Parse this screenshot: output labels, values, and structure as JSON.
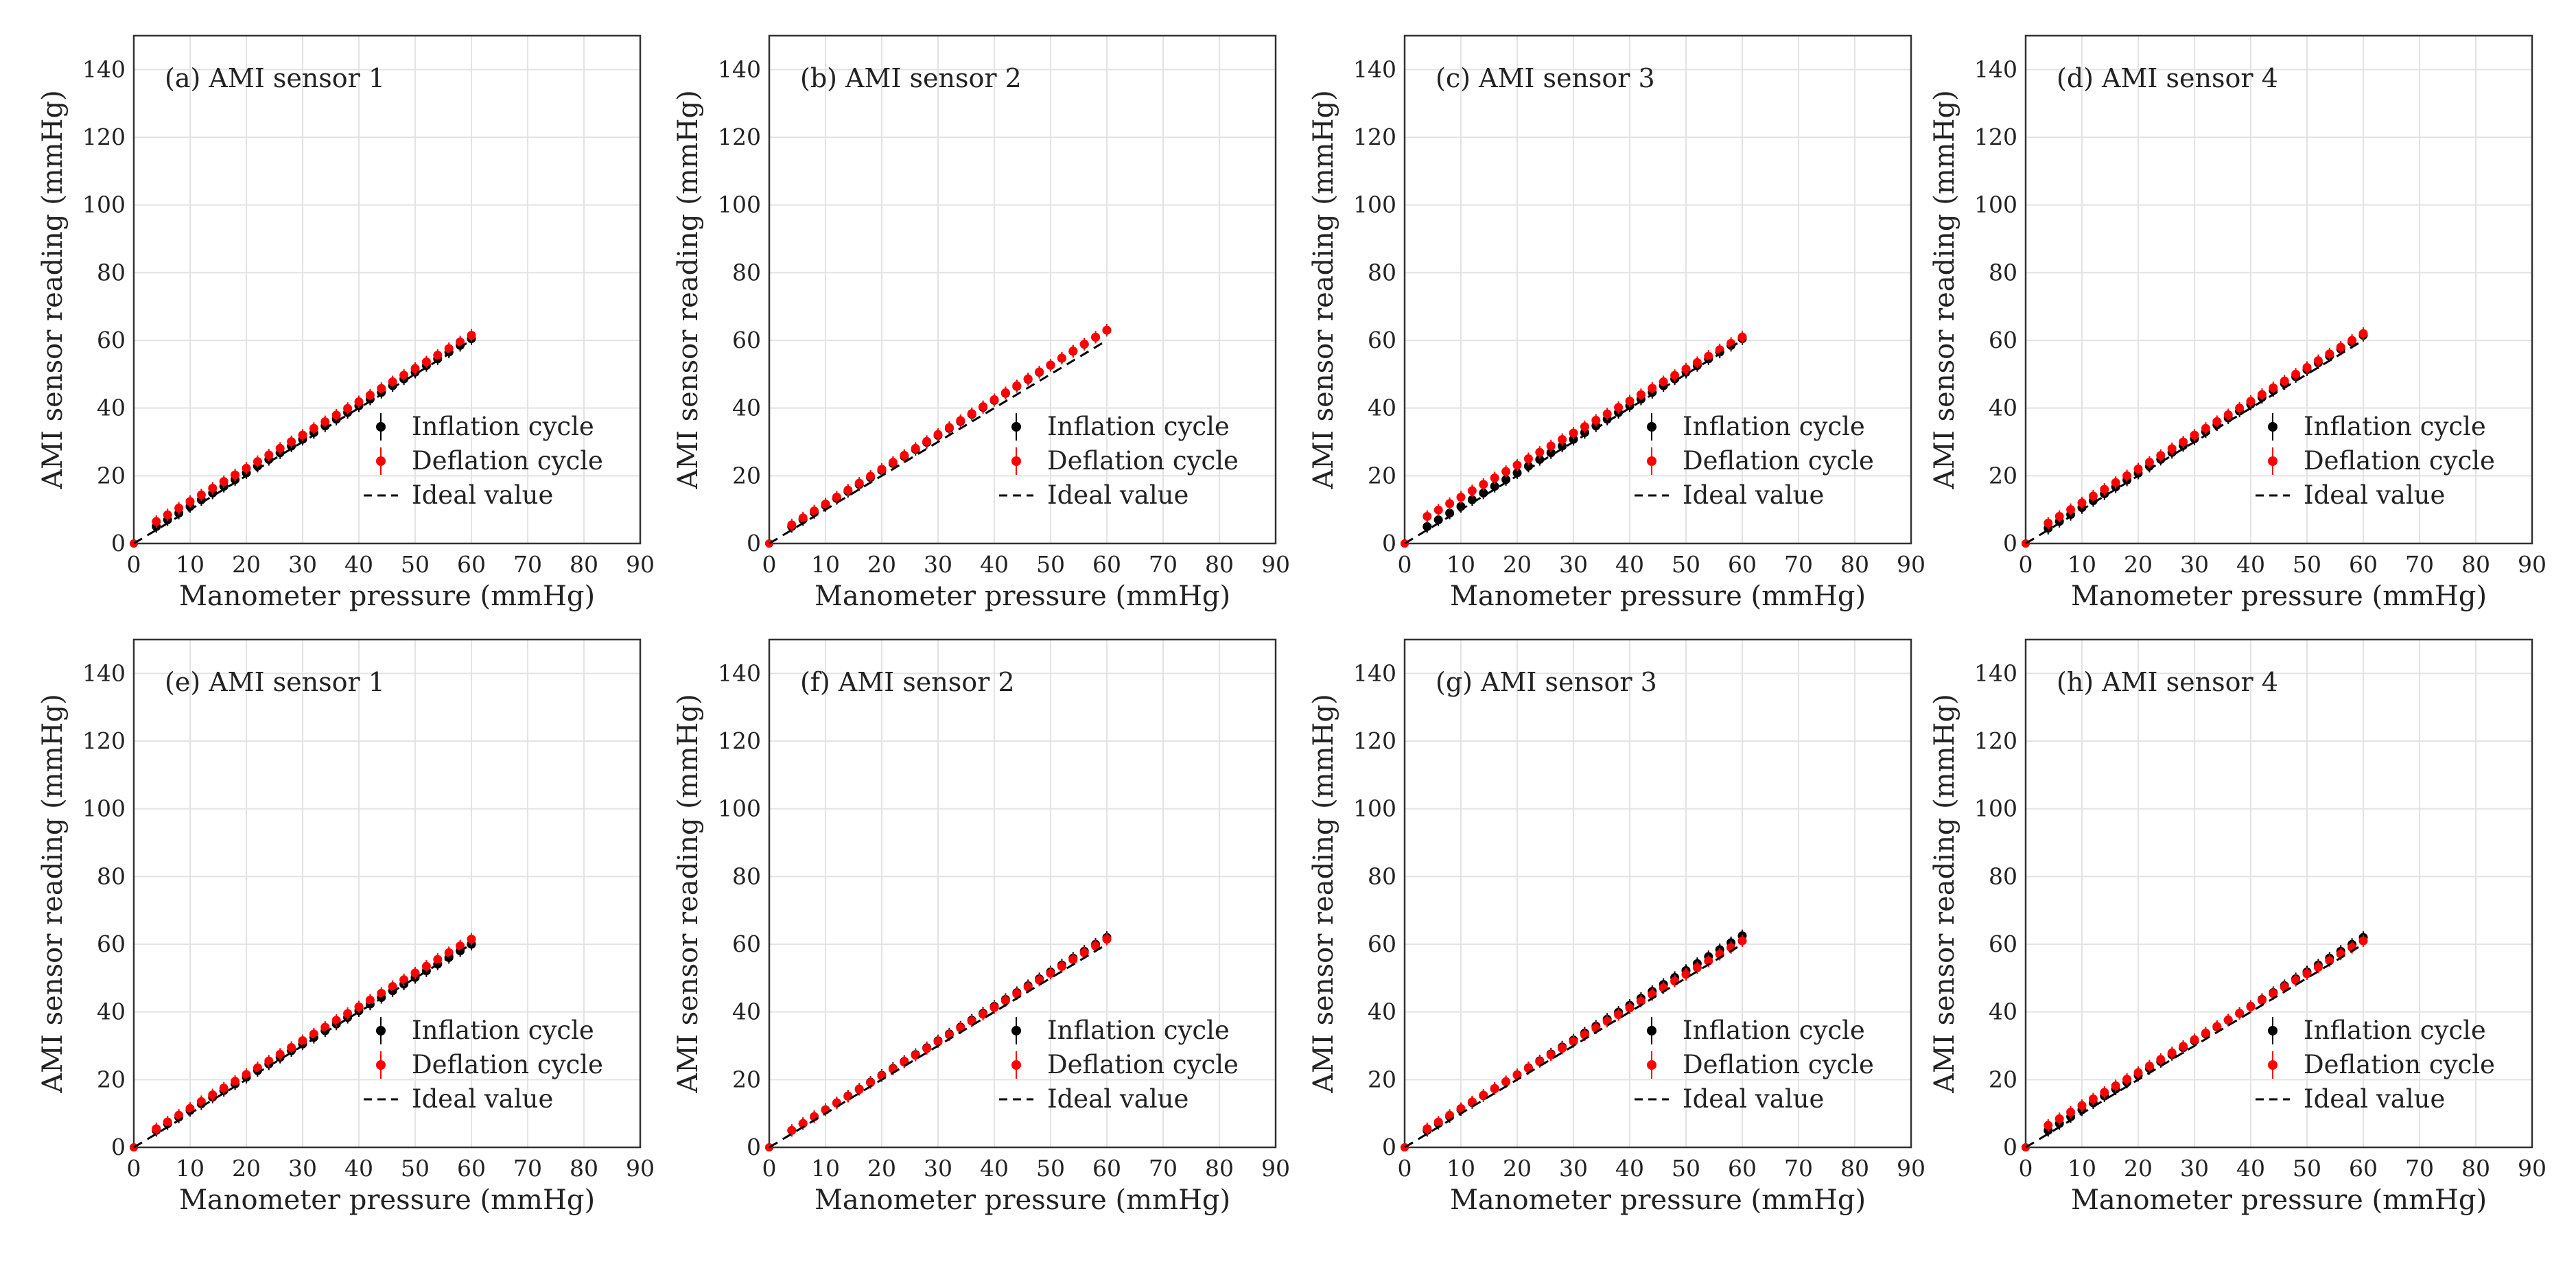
{
  "figure": {
    "background": "#ffffff"
  },
  "chart_data": [
    {
      "type": "scatter",
      "title": "(a) AMI sensor 1",
      "xlabel": "Manometer pressure (mmHg)",
      "ylabel": "AMI sensor reading (mmHg)",
      "xlim": [
        0,
        90
      ],
      "ylim": [
        0,
        150
      ],
      "xticks": [
        "0",
        "10",
        "20",
        "30",
        "40",
        "50",
        "60",
        "70",
        "80",
        "90"
      ],
      "yticks": [
        "0",
        "20",
        "40",
        "60",
        "80",
        "100",
        "120",
        "140"
      ],
      "grid": true,
      "legend": "right-middle",
      "series": [
        {
          "name": "Inflation cycle",
          "color": "#000000",
          "marker": "dot-errorbar",
          "x_range": [
            4,
            60
          ],
          "y_at_start": 5.0,
          "y_at_end": 60.5
        },
        {
          "name": "Deflation cycle",
          "color": "#ff0000",
          "marker": "dot-errorbar",
          "x_range": [
            4,
            60
          ],
          "y_at_start": 6.5,
          "y_at_end": 61.5
        },
        {
          "name": "Ideal value",
          "color": "#000000",
          "style": "dashed",
          "x": [
            0,
            60
          ],
          "y": [
            0,
            60
          ]
        }
      ]
    },
    {
      "type": "scatter",
      "title": "(b) AMI sensor 2",
      "xlabel": "Manometer pressure (mmHg)",
      "ylabel": "AMI sensor reading (mmHg)",
      "xlim": [
        0,
        90
      ],
      "ylim": [
        0,
        150
      ],
      "xticks": [
        "0",
        "10",
        "20",
        "30",
        "40",
        "50",
        "60",
        "70",
        "80",
        "90"
      ],
      "yticks": [
        "0",
        "20",
        "40",
        "60",
        "80",
        "100",
        "120",
        "140"
      ],
      "grid": true,
      "legend": "right-middle",
      "series": [
        {
          "name": "Inflation cycle",
          "color": "#000000",
          "marker": "dot-errorbar",
          "x_range": [
            4,
            60
          ],
          "y_at_start": 5.0,
          "y_at_end": 63.0
        },
        {
          "name": "Deflation cycle",
          "color": "#ff0000",
          "marker": "dot-errorbar",
          "x_range": [
            4,
            60
          ],
          "y_at_start": 5.5,
          "y_at_end": 63.0
        },
        {
          "name": "Ideal value",
          "color": "#000000",
          "style": "dashed",
          "x": [
            0,
            60
          ],
          "y": [
            0,
            60
          ]
        }
      ]
    },
    {
      "type": "scatter",
      "title": "(c) AMI sensor 3",
      "xlabel": "Manometer pressure (mmHg)",
      "ylabel": "AMI sensor reading (mmHg)",
      "xlim": [
        0,
        90
      ],
      "ylim": [
        0,
        150
      ],
      "xticks": [
        "0",
        "10",
        "20",
        "30",
        "40",
        "50",
        "60",
        "70",
        "80",
        "90"
      ],
      "yticks": [
        "0",
        "20",
        "40",
        "60",
        "80",
        "100",
        "120",
        "140"
      ],
      "grid": true,
      "legend": "right-middle",
      "series": [
        {
          "name": "Inflation cycle",
          "color": "#000000",
          "marker": "dot-errorbar",
          "x_range": [
            4,
            60
          ],
          "y_at_start": 5.0,
          "y_at_end": 60.5
        },
        {
          "name": "Deflation cycle",
          "color": "#ff0000",
          "marker": "dot-errorbar",
          "x_range": [
            4,
            60
          ],
          "y_at_start": 8.0,
          "y_at_end": 61.0
        },
        {
          "name": "Ideal value",
          "color": "#000000",
          "style": "dashed",
          "x": [
            0,
            60
          ],
          "y": [
            0,
            60
          ]
        }
      ]
    },
    {
      "type": "scatter",
      "title": "(d) AMI sensor 4",
      "xlabel": "Manometer pressure (mmHg)",
      "ylabel": "AMI sensor reading (mmHg)",
      "xlim": [
        0,
        90
      ],
      "ylim": [
        0,
        150
      ],
      "xticks": [
        "0",
        "10",
        "20",
        "30",
        "40",
        "50",
        "60",
        "70",
        "80",
        "90"
      ],
      "yticks": [
        "0",
        "20",
        "40",
        "60",
        "80",
        "100",
        "120",
        "140"
      ],
      "grid": true,
      "legend": "right-middle",
      "series": [
        {
          "name": "Inflation cycle",
          "color": "#000000",
          "marker": "dot-errorbar",
          "x_range": [
            4,
            60
          ],
          "y_at_start": 4.5,
          "y_at_end": 61.5
        },
        {
          "name": "Deflation cycle",
          "color": "#ff0000",
          "marker": "dot-errorbar",
          "x_range": [
            4,
            60
          ],
          "y_at_start": 6.0,
          "y_at_end": 62.0
        },
        {
          "name": "Ideal value",
          "color": "#000000",
          "style": "dashed",
          "x": [
            0,
            60
          ],
          "y": [
            0,
            60
          ]
        }
      ]
    },
    {
      "type": "scatter",
      "title": "(e) AMI sensor 1",
      "xlabel": "Manometer pressure (mmHg)",
      "ylabel": "AMI sensor reading (mmHg)",
      "xlim": [
        0,
        90
      ],
      "ylim": [
        0,
        150
      ],
      "xticks": [
        "0",
        "10",
        "20",
        "30",
        "40",
        "50",
        "60",
        "70",
        "80",
        "90"
      ],
      "yticks": [
        "0",
        "20",
        "40",
        "60",
        "80",
        "100",
        "120",
        "140"
      ],
      "grid": true,
      "legend": "right-middle",
      "series": [
        {
          "name": "Inflation cycle",
          "color": "#000000",
          "marker": "dot-errorbar",
          "x_range": [
            4,
            60
          ],
          "y_at_start": 5.0,
          "y_at_end": 60.0
        },
        {
          "name": "Deflation cycle",
          "color": "#ff0000",
          "marker": "dot-errorbar",
          "x_range": [
            4,
            60
          ],
          "y_at_start": 5.5,
          "y_at_end": 61.5
        },
        {
          "name": "Ideal value",
          "color": "#000000",
          "style": "dashed",
          "x": [
            0,
            60
          ],
          "y": [
            0,
            60
          ]
        }
      ]
    },
    {
      "type": "scatter",
      "title": "(f) AMI sensor 2",
      "xlabel": "Manometer pressure (mmHg)",
      "ylabel": "AMI sensor reading (mmHg)",
      "xlim": [
        0,
        90
      ],
      "ylim": [
        0,
        150
      ],
      "xticks": [
        "0",
        "10",
        "20",
        "30",
        "40",
        "50",
        "60",
        "70",
        "80",
        "90"
      ],
      "yticks": [
        "0",
        "20",
        "40",
        "60",
        "80",
        "100",
        "120",
        "140"
      ],
      "grid": true,
      "legend": "right-middle",
      "series": [
        {
          "name": "Inflation cycle",
          "color": "#000000",
          "marker": "dot-errorbar",
          "x_range": [
            4,
            60
          ],
          "y_at_start": 5.0,
          "y_at_end": 62.0
        },
        {
          "name": "Deflation cycle",
          "color": "#ff0000",
          "marker": "dot-errorbar",
          "x_range": [
            4,
            60
          ],
          "y_at_start": 5.0,
          "y_at_end": 61.5
        },
        {
          "name": "Ideal value",
          "color": "#000000",
          "style": "dashed",
          "x": [
            0,
            60
          ],
          "y": [
            0,
            60
          ]
        }
      ]
    },
    {
      "type": "scatter",
      "title": "(g) AMI sensor 3",
      "xlabel": "Manometer pressure (mmHg)",
      "ylabel": "AMI sensor reading (mmHg)",
      "xlim": [
        0,
        90
      ],
      "ylim": [
        0,
        150
      ],
      "xticks": [
        "0",
        "10",
        "20",
        "30",
        "40",
        "50",
        "60",
        "70",
        "80",
        "90"
      ],
      "yticks": [
        "0",
        "20",
        "40",
        "60",
        "80",
        "100",
        "120",
        "140"
      ],
      "grid": true,
      "legend": "right-middle",
      "series": [
        {
          "name": "Inflation cycle",
          "color": "#000000",
          "marker": "dot-errorbar",
          "x_range": [
            4,
            60
          ],
          "y_at_start": 5.0,
          "y_at_end": 62.5
        },
        {
          "name": "Deflation cycle",
          "color": "#ff0000",
          "marker": "dot-errorbar",
          "x_range": [
            4,
            60
          ],
          "y_at_start": 5.5,
          "y_at_end": 61.0
        },
        {
          "name": "Ideal value",
          "color": "#000000",
          "style": "dashed",
          "x": [
            0,
            60
          ],
          "y": [
            0,
            60
          ]
        }
      ]
    },
    {
      "type": "scatter",
      "title": "(h) AMI sensor 4",
      "xlabel": "Manometer pressure (mmHg)",
      "ylabel": "AMI sensor reading (mmHg)",
      "xlim": [
        0,
        90
      ],
      "ylim": [
        0,
        150
      ],
      "xticks": [
        "0",
        "10",
        "20",
        "30",
        "40",
        "50",
        "60",
        "70",
        "80",
        "90"
      ],
      "yticks": [
        "0",
        "20",
        "40",
        "60",
        "80",
        "100",
        "120",
        "140"
      ],
      "grid": true,
      "legend": "right-middle",
      "series": [
        {
          "name": "Inflation cycle",
          "color": "#000000",
          "marker": "dot-errorbar",
          "x_range": [
            4,
            60
          ],
          "y_at_start": 5.0,
          "y_at_end": 62.0
        },
        {
          "name": "Deflation cycle",
          "color": "#ff0000",
          "marker": "dot-errorbar",
          "x_range": [
            4,
            60
          ],
          "y_at_start": 6.5,
          "y_at_end": 61.0
        },
        {
          "name": "Ideal value",
          "color": "#000000",
          "style": "dashed",
          "x": [
            0,
            60
          ],
          "y": [
            0,
            60
          ]
        }
      ]
    }
  ]
}
